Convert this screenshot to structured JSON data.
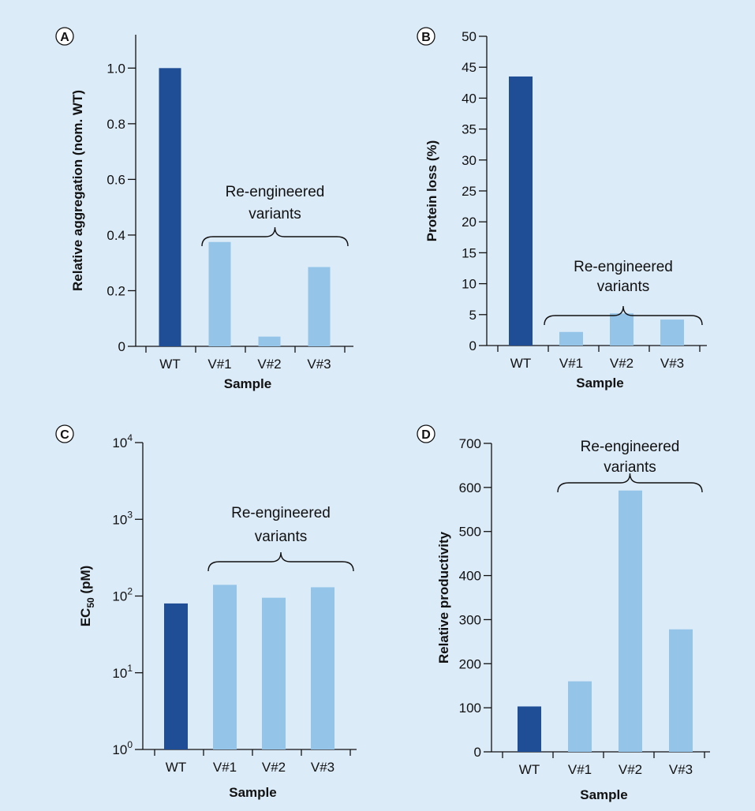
{
  "chart_data": [
    {
      "panel": "A",
      "type": "bar",
      "categories": [
        "WT",
        "V#1",
        "V#2",
        "V#3"
      ],
      "values": [
        1.0,
        0.375,
        0.035,
        0.285
      ],
      "colors": [
        "#1f4e96",
        "#94c5e8",
        "#94c5e8",
        "#94c5e8"
      ],
      "xlabel": "Sample",
      "ylabel": "Relative aggregation (nom. WT)",
      "ylim": [
        0,
        1.12
      ],
      "yticks": [
        0,
        0.2,
        0.4,
        0.6,
        0.8,
        1.0
      ],
      "ytick_labels": [
        "0",
        "0.2",
        "0.4",
        "0.6",
        "0.8",
        "1.0"
      ],
      "bracket": {
        "label_lines": [
          "Re-engineered",
          "variants"
        ],
        "spans": [
          "V#1",
          "V#3"
        ]
      }
    },
    {
      "panel": "B",
      "type": "bar",
      "categories": [
        "WT",
        "V#1",
        "V#2",
        "V#3"
      ],
      "values": [
        43.5,
        2.2,
        5.2,
        4.2
      ],
      "colors": [
        "#1f4e96",
        "#94c5e8",
        "#94c5e8",
        "#94c5e8"
      ],
      "xlabel": "Sample",
      "ylabel": "Protein loss (%)",
      "ylim": [
        0,
        50
      ],
      "yticks": [
        0,
        5,
        10,
        15,
        20,
        25,
        30,
        35,
        40,
        45,
        50
      ],
      "ytick_labels": [
        "0",
        "5",
        "10",
        "15",
        "20",
        "25",
        "30",
        "35",
        "40",
        "45",
        "50"
      ],
      "bracket": {
        "label_lines": [
          "Re-engineered",
          "variants"
        ],
        "spans": [
          "V#1",
          "V#3"
        ]
      }
    },
    {
      "panel": "C",
      "type": "bar",
      "scale": "log",
      "categories": [
        "WT",
        "V#1",
        "V#2",
        "V#3"
      ],
      "values": [
        80,
        140,
        95,
        130
      ],
      "colors": [
        "#1f4e96",
        "#94c5e8",
        "#94c5e8",
        "#94c5e8"
      ],
      "xlabel": "Sample",
      "ylabel_main": "EC",
      "ylabel_sub": "50",
      "ylabel_suffix": " (pM)",
      "ylim": [
        1,
        10000
      ],
      "yticks": [
        1,
        10,
        100,
        1000,
        10000
      ],
      "ytick_base": "10",
      "ytick_exponents": [
        "0",
        "1",
        "2",
        "3",
        "4"
      ],
      "bracket": {
        "label_lines": [
          "Re-engineered",
          "variants"
        ],
        "spans": [
          "V#1",
          "V#3"
        ]
      }
    },
    {
      "panel": "D",
      "type": "bar",
      "categories": [
        "WT",
        "V#1",
        "V#2",
        "V#3"
      ],
      "values": [
        103,
        160,
        593,
        278
      ],
      "colors": [
        "#1f4e96",
        "#94c5e8",
        "#94c5e8",
        "#94c5e8"
      ],
      "xlabel": "Sample",
      "ylabel": "Relative productivity",
      "ylim": [
        0,
        700
      ],
      "yticks": [
        0,
        100,
        200,
        300,
        400,
        500,
        600,
        700
      ],
      "ytick_labels": [
        "0",
        "100",
        "200",
        "300",
        "400",
        "500",
        "600",
        "700"
      ],
      "bracket": {
        "label_lines": [
          "Re-engineered",
          "variants"
        ],
        "spans": [
          "V#1",
          "V#3"
        ]
      }
    }
  ]
}
